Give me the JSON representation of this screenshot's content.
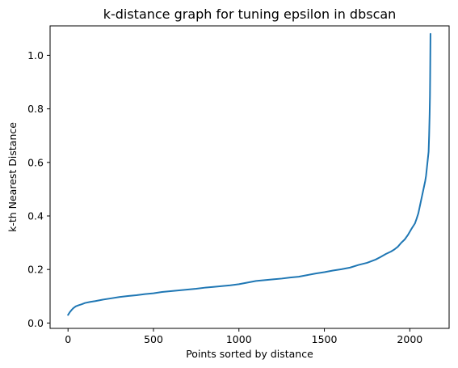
{
  "chart_data": {
    "type": "line",
    "title": "k-distance graph for tuning epsilon in dbscan",
    "xlabel": "Points sorted by distance",
    "ylabel": "k-th Nearest Distance",
    "xlim": [
      -105,
      2230
    ],
    "ylim": [
      -0.02,
      1.11
    ],
    "x_ticks": [
      0,
      500,
      1000,
      1500,
      2000
    ],
    "y_ticks": [
      0.0,
      0.2,
      0.4,
      0.6,
      0.8,
      1.0
    ],
    "x_tick_labels": [
      "0",
      "500",
      "1000",
      "1500",
      "2000"
    ],
    "y_tick_labels": [
      "0.0",
      "0.2",
      "0.4",
      "0.6",
      "0.8",
      "1.0"
    ],
    "grid": false,
    "line_color": "#1f77b4",
    "series": [
      {
        "x": [
          0,
          10,
          20,
          30,
          45,
          60,
          80,
          100,
          130,
          160,
          200,
          250,
          300,
          350,
          400,
          450,
          500,
          550,
          600,
          650,
          700,
          750,
          800,
          850,
          900,
          950,
          1000,
          1050,
          1100,
          1150,
          1200,
          1250,
          1300,
          1350,
          1400,
          1450,
          1500,
          1550,
          1600,
          1650,
          1700,
          1750,
          1800,
          1830,
          1860,
          1890,
          1910,
          1930,
          1950,
          1970,
          1990,
          2010,
          2030,
          2040,
          2050,
          2060,
          2070,
          2080,
          2090,
          2095,
          2100,
          2105,
          2110,
          2113,
          2116,
          2118,
          2119,
          2120,
          2121
        ],
        "y": [
          0.03,
          0.04,
          0.048,
          0.055,
          0.062,
          0.066,
          0.07,
          0.075,
          0.079,
          0.082,
          0.087,
          0.092,
          0.097,
          0.101,
          0.104,
          0.108,
          0.111,
          0.116,
          0.119,
          0.122,
          0.125,
          0.128,
          0.132,
          0.135,
          0.138,
          0.141,
          0.145,
          0.151,
          0.157,
          0.16,
          0.163,
          0.166,
          0.17,
          0.173,
          0.179,
          0.185,
          0.19,
          0.196,
          0.201,
          0.207,
          0.217,
          0.225,
          0.237,
          0.247,
          0.258,
          0.267,
          0.275,
          0.285,
          0.3,
          0.312,
          0.33,
          0.352,
          0.372,
          0.39,
          0.41,
          0.44,
          0.47,
          0.5,
          0.53,
          0.55,
          0.58,
          0.61,
          0.64,
          0.7,
          0.78,
          0.85,
          0.92,
          1.0,
          1.08
        ]
      }
    ]
  }
}
